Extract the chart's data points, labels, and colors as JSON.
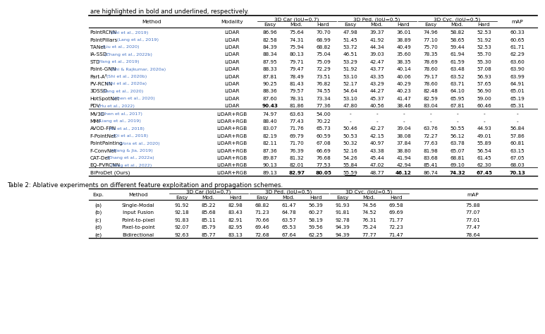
{
  "caption_text": "are highlighted in bold and underlined, respectively.",
  "table1": {
    "header_row1": [
      "Method",
      "Modality",
      "3D Car (IoU=0.7)",
      "",
      "",
      "3D Ped. (IoU=0.5)",
      "",
      "",
      "3D Cyc. (IoU=0.5)",
      "",
      "",
      "mAP"
    ],
    "header_row2": [
      "",
      "",
      "Easy",
      "Mod.",
      "Hard",
      "Easy",
      "Mod.",
      "Hard",
      "Easy",
      "Mod.",
      "Hard",
      ""
    ],
    "lidar_rows": [
      [
        "PointRCNN",
        "Shi et al., 2019",
        "LiDAR",
        "86.96",
        "75.64",
        "70.70",
        "47.98",
        "39.37",
        "36.01",
        "74.96",
        "58.82",
        "52.53",
        "60.33"
      ],
      [
        "PointPillars",
        "Lang et al., 2019",
        "LiDAR",
        "82.58",
        "74.31",
        "68.99",
        "51.45",
        "41.92",
        "38.89",
        "77.10",
        "58.65",
        "51.92",
        "60.65"
      ],
      [
        "TANet",
        "Liu et al., 2020",
        "LiDAR",
        "84.39",
        "75.94",
        "68.82",
        "53.72",
        "44.34",
        "40.49",
        "75.70",
        "59.44",
        "52.53",
        "61.71"
      ],
      [
        "IA-SSD",
        "Zhang et al., 2022b",
        "LiDAR",
        "88.34",
        "80.13",
        "75.04",
        "46.51",
        "39.03",
        "35.60",
        "78.35",
        "61.94",
        "55.70",
        "62.29"
      ],
      [
        "STD",
        "Yang et al., 2019",
        "LiDAR",
        "87.95",
        "79.71",
        "75.09",
        "53.29",
        "42.47",
        "38.35",
        "78.69",
        "61.59",
        "55.30",
        "63.60"
      ],
      [
        "Point-GNN",
        "Shi & Rajkumar, 2020a",
        "LiDAR",
        "88.33",
        "79.47",
        "72.29",
        "51.92",
        "43.77",
        "40.14",
        "78.60",
        "63.48",
        "57.08",
        "63.90"
      ],
      [
        "Part-A²",
        "Shi et al., 2020b",
        "LiDAR",
        "87.81",
        "78.49",
        "73.51",
        "53.10",
        "43.35",
        "40.06",
        "79.17",
        "63.52",
        "56.93",
        "63.99"
      ],
      [
        "PV-RCNN",
        "Shi et al., 2020a",
        "LiDAR",
        "90.25",
        "81.43",
        "76.82",
        "52.17",
        "43.29",
        "40.29",
        "78.60",
        "63.71",
        "57.65",
        "64.91"
      ],
      [
        "3DSSD",
        "Yang et al., 2020",
        "LiDAR",
        "88.36",
        "79.57",
        "74.55",
        "54.64",
        "44.27",
        "40.23",
        "82.48",
        "64.10",
        "56.90",
        "65.01"
      ],
      [
        "HotSpotNet",
        "Chen et al., 2020",
        "LiDAR",
        "87.60",
        "78.31",
        "73.34",
        "53.10",
        "45.37",
        "41.47",
        "82.59",
        "65.95",
        "59.00",
        "65.19"
      ],
      [
        "PDV",
        "Hu et al., 2022",
        "LiDAR",
        "90.43",
        "81.86",
        "77.36",
        "47.80",
        "40.56",
        "38.46",
        "83.04",
        "67.81",
        "60.46",
        "65.31"
      ]
    ],
    "lidarrgb_rows": [
      [
        "MV3D",
        "Chen et al., 2017",
        "LiDAR+RGB",
        "74.97",
        "63.63",
        "54.00",
        "-",
        "-",
        "-",
        "-",
        "-",
        "-",
        "-"
      ],
      [
        "MMF",
        "Liang et al., 2019",
        "LiDAR+RGB",
        "88.40",
        "77.43",
        "70.22",
        "-",
        "-",
        "-",
        "-",
        "-",
        "-",
        "-"
      ],
      [
        "AVOD-FPN",
        "Ku et al., 2018",
        "LiDAR+RGB",
        "83.07",
        "71.76",
        "65.73",
        "50.46",
        "42.27",
        "39.04",
        "63.76",
        "50.55",
        "44.93",
        "56.84"
      ],
      [
        "F-PointNet",
        "Qi et al., 2018",
        "LiDAR+RGB",
        "82.19",
        "69.79",
        "60.59",
        "50.53",
        "42.15",
        "38.08",
        "72.27",
        "56.12",
        "49.01",
        "57.86"
      ],
      [
        "PointPainting",
        "Vora et al., 2020",
        "LiDAR+RGB",
        "82.11",
        "71.70",
        "67.08",
        "50.32",
        "40.97",
        "37.84",
        "77.63",
        "63.78",
        "55.89",
        "60.81"
      ],
      [
        "F-ConvNet",
        "Wang & Jia, 2019",
        "LiDAR+RGB",
        "87.36",
        "76.39",
        "66.69",
        "52.16",
        "43.38",
        "38.80",
        "81.98",
        "65.07",
        "56.54",
        "63.15"
      ],
      [
        "CAT-Det",
        "Zhang et al., 2022a",
        "LiDAR+RGB",
        "89.87",
        "81.32",
        "76.68",
        "54.26",
        "45.44",
        "41.94",
        "83.68",
        "68.81",
        "61.45",
        "67.05"
      ],
      [
        "EQ-PVRCNN",
        "Yang et al., 2022",
        "LiDAR+RGB",
        "90.13",
        "82.01",
        "77.53",
        "55.84",
        "47.02",
        "42.94",
        "85.41",
        "69.10",
        "62.30",
        "68.03"
      ]
    ],
    "ours_row": [
      "BiProDet (Ours)",
      "",
      "LiDAR+RGB",
      "89.13",
      "82.97",
      "80.05",
      "55.59",
      "48.77",
      "46.12",
      "86.74",
      "74.32",
      "67.45",
      "70.13"
    ],
    "bold_cells_lidar": [],
    "bold_in_ours": [
      "82.97",
      "80.05",
      "46.12",
      "74.32",
      "67.45",
      "70.13"
    ],
    "underline_in_ours": [
      "55.59"
    ],
    "bold_in_lidar": [
      [
        "90.43",
        10,
        1
      ]
    ],
    "underline_in_eqpvrcnn": [
      "55.84",
      "77.53"
    ]
  },
  "table2": {
    "caption": "Table 2: Ablative experiments on different feature exploitation and propagation schemes.",
    "header_row1": [
      "Exp.",
      "Method",
      "3D Car (IoU=0.7)",
      "",
      "",
      "3D Ped. (IoU=0.5)",
      "",
      "",
      "3D Cyc. (IoU=0.5)",
      "",
      "",
      "mAP"
    ],
    "header_row2": [
      "",
      "",
      "Easy",
      "Mod.",
      "Hard",
      "Easy",
      "Mod.",
      "Hard",
      "Easy",
      "Mod.",
      "Hard",
      ""
    ],
    "rows": [
      [
        "(a)",
        "Single-Modal",
        "91.92",
        "85.22",
        "82.98",
        "68.82",
        "61.47",
        "56.39",
        "91.93",
        "74.56",
        "69.58",
        "75.88"
      ],
      [
        "(b)",
        "Input Fusion",
        "92.18",
        "85.68",
        "83.43",
        "71.23",
        "64.78",
        "60.27",
        "91.81",
        "74.52",
        "69.69",
        "77.07"
      ],
      [
        "(c)",
        "Point-to-pixel",
        "91.83",
        "85.11",
        "82.91",
        "70.66",
        "63.57",
        "58.19",
        "92.78",
        "76.31",
        "71.77",
        "77.01"
      ],
      [
        "(d)",
        "Pixel-to-point",
        "92.07",
        "85.79",
        "82.95",
        "69.46",
        "65.53",
        "59.56",
        "94.39",
        "75.24",
        "72.23",
        "77.47"
      ],
      [
        "(e)",
        "Bidirectional",
        "92.63",
        "85.77",
        "83.13",
        "72.68",
        "67.64",
        "62.25",
        "94.39",
        "77.77",
        "71.47",
        "78.64"
      ]
    ]
  },
  "colors": {
    "citation_blue": "#4472C4",
    "header_bg": "#FFFFFF",
    "row_bg": "#FFFFFF",
    "separator_line": "#000000",
    "text": "#000000"
  }
}
